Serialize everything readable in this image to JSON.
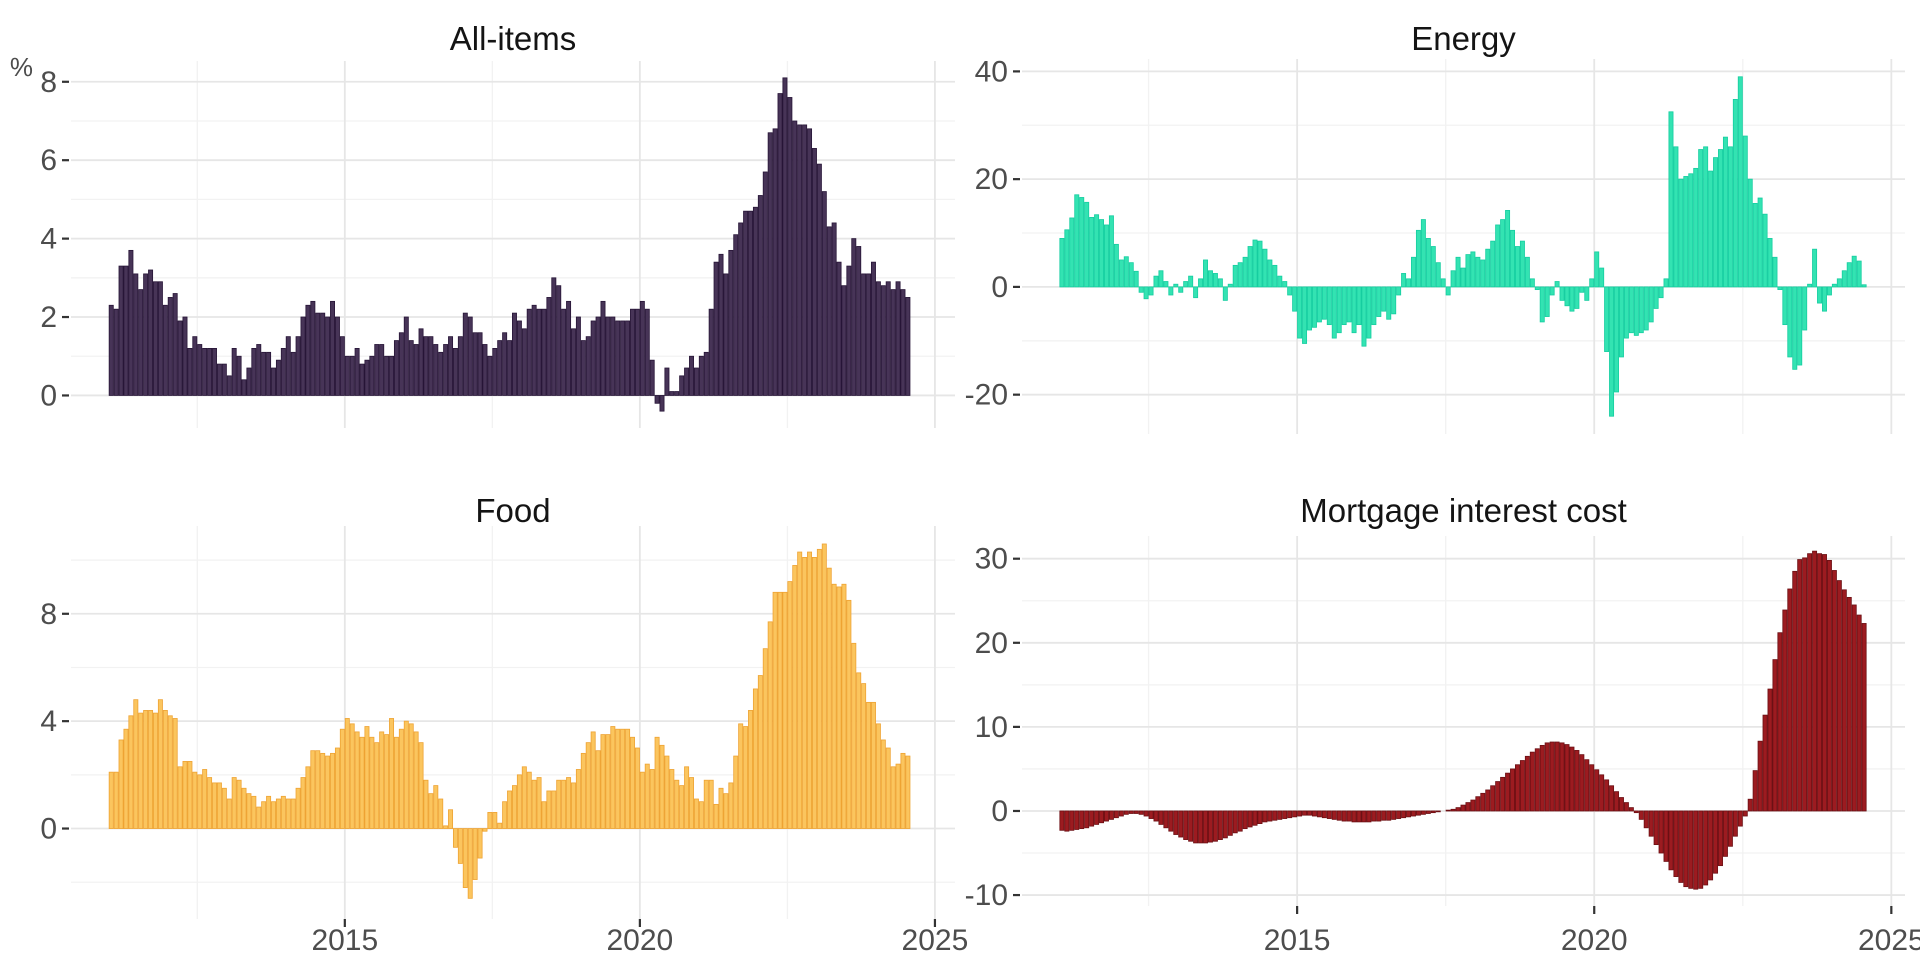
{
  "page": {
    "background": "#FFFFFF"
  },
  "axis_style": {
    "text_color": "#4D4D4D",
    "tick_color": "#333333",
    "grid_major": "#E6E6E6",
    "grid_minor": "#F2F2F2",
    "title_color": "#141414",
    "axis_font_px": 30,
    "title_font_px": 33
  },
  "chart_data": [
    {
      "id": "all-items",
      "type": "bar",
      "title": "All-items",
      "ylabel": "%",
      "fill": "#473457",
      "stroke": "#271537",
      "x_start_year": 2011,
      "frequency": "monthly",
      "xlim": [
        2010.36,
        2025.34
      ],
      "x_breaks": [
        2015,
        2020,
        2025
      ],
      "x_break_labels": [
        "2015",
        "2020",
        "2025"
      ],
      "x_minor_breaks": [
        2012.5,
        2017.5,
        2022.5
      ],
      "show_x_labels": false,
      "ylim": [
        -0.83,
        8.53
      ],
      "y_breaks": [
        0,
        2,
        4,
        6,
        8
      ],
      "y_minor_breaks": [
        1,
        3,
        5,
        7
      ],
      "values": [
        2.3,
        2.2,
        3.3,
        3.3,
        3.7,
        3.1,
        2.7,
        3.1,
        3.2,
        2.9,
        2.9,
        2.3,
        2.5,
        2.6,
        1.9,
        2.0,
        1.2,
        1.5,
        1.3,
        1.2,
        1.2,
        1.2,
        0.8,
        0.8,
        0.5,
        1.2,
        1.0,
        0.4,
        0.7,
        1.2,
        1.3,
        1.1,
        1.1,
        0.7,
        0.9,
        1.2,
        1.5,
        1.1,
        1.5,
        2.0,
        2.3,
        2.4,
        2.1,
        2.1,
        2.0,
        2.4,
        2.0,
        1.5,
        1.0,
        1.0,
        1.2,
        0.8,
        0.9,
        1.0,
        1.3,
        1.3,
        1.0,
        1.0,
        1.4,
        1.6,
        2.0,
        1.4,
        1.3,
        1.7,
        1.5,
        1.5,
        1.3,
        1.1,
        1.3,
        1.5,
        1.2,
        1.5,
        2.1,
        2.0,
        1.6,
        1.6,
        1.3,
        1.0,
        1.2,
        1.4,
        1.6,
        1.4,
        2.1,
        1.9,
        1.7,
        2.2,
        2.3,
        2.2,
        2.2,
        2.5,
        3.0,
        2.8,
        2.2,
        2.4,
        1.7,
        2.0,
        1.4,
        1.5,
        1.9,
        2.0,
        2.4,
        2.0,
        2.0,
        1.9,
        1.9,
        1.9,
        2.2,
        2.2,
        2.4,
        2.2,
        0.9,
        -0.2,
        -0.4,
        0.7,
        0.1,
        0.1,
        0.5,
        0.7,
        1.0,
        0.7,
        1.0,
        1.1,
        2.2,
        3.4,
        3.6,
        3.1,
        3.7,
        4.1,
        4.4,
        4.7,
        4.7,
        4.8,
        5.1,
        5.7,
        6.7,
        6.8,
        7.7,
        8.1,
        7.6,
        7.0,
        6.9,
        6.9,
        6.8,
        6.3,
        5.9,
        5.2,
        4.3,
        4.4,
        3.4,
        2.8,
        3.3,
        4.0,
        3.8,
        3.1,
        3.1,
        3.4,
        2.9,
        2.8,
        2.9,
        2.7,
        2.9,
        2.7,
        2.5
      ]
    },
    {
      "id": "energy",
      "type": "bar",
      "title": "Energy",
      "ylabel": "",
      "fill": "#33E3B2",
      "stroke": "#15CDA0",
      "x_start_year": 2011,
      "frequency": "monthly",
      "xlim": [
        2010.37,
        2025.23
      ],
      "x_breaks": [
        2015,
        2020,
        2025
      ],
      "x_break_labels": [
        "2015",
        "2020",
        "2025"
      ],
      "x_minor_breaks": [
        2012.5,
        2017.5,
        2022.5
      ],
      "show_x_labels": false,
      "ylim": [
        -27.3,
        42.3
      ],
      "y_breaks": [
        -20,
        0,
        20,
        40
      ],
      "y_minor_breaks": [
        -10,
        10,
        30
      ],
      "values": [
        9.0,
        10.6,
        12.8,
        17.1,
        16.6,
        15.7,
        12.9,
        13.4,
        12.5,
        11.5,
        13.2,
        7.9,
        5.0,
        5.6,
        4.5,
        2.9,
        -1.0,
        -2.2,
        -1.5,
        2.0,
        3.0,
        1.0,
        -1.5,
        0.5,
        -1.0,
        1.0,
        2.0,
        -2.0,
        1.5,
        5.0,
        3.0,
        2.5,
        1.5,
        -2.5,
        0.5,
        4.0,
        4.5,
        5.5,
        7.5,
        8.7,
        8.5,
        7.0,
        5.0,
        4.0,
        2.0,
        1.0,
        -1.5,
        -4.5,
        -9.5,
        -10.5,
        -8.0,
        -7.5,
        -6.5,
        -6.0,
        -7.0,
        -9.5,
        -8.5,
        -7.0,
        -6.5,
        -8.5,
        -7.0,
        -11.0,
        -9.5,
        -7.0,
        -5.5,
        -4.5,
        -6.0,
        -5.0,
        -1.5,
        2.5,
        1.5,
        5.5,
        10.5,
        12.5,
        9.0,
        7.5,
        4.5,
        1.5,
        -1.5,
        3.0,
        5.5,
        3.5,
        6.0,
        6.5,
        5.5,
        5.0,
        7.0,
        8.5,
        11.5,
        12.5,
        14.2,
        10.5,
        7.5,
        8.5,
        5.5,
        1.5,
        -0.5,
        -6.5,
        -5.5,
        -1.5,
        1.0,
        -2.5,
        -3.5,
        -4.5,
        -4.0,
        -1.0,
        -2.5,
        1.5,
        6.5,
        3.5,
        -12.0,
        -24.0,
        -19.5,
        -13.0,
        -9.5,
        -8.5,
        -9.0,
        -8.5,
        -8.0,
        -6.5,
        -4.0,
        -2.0,
        1.5,
        32.5,
        26.0,
        20.0,
        20.5,
        21.0,
        22.0,
        25.5,
        26.0,
        21.5,
        24.0,
        25.5,
        27.8,
        26.0,
        34.8,
        39.0,
        28.0,
        20.0,
        15.5,
        16.5,
        13.5,
        9.0,
        5.5,
        -0.5,
        -7.0,
        -13.0,
        -15.3,
        -14.5,
        -8.0,
        0.5,
        7.0,
        -3.0,
        -4.5,
        -1.5,
        0.5,
        1.5,
        3.0,
        4.5,
        5.7,
        4.8,
        0.4
      ]
    },
    {
      "id": "food",
      "type": "bar",
      "title": "Food",
      "ylabel": "",
      "fill": "#FBC55E",
      "stroke": "#EEA333",
      "x_start_year": 2011,
      "frequency": "monthly",
      "xlim": [
        2010.36,
        2025.34
      ],
      "x_breaks": [
        2015,
        2020,
        2025
      ],
      "x_break_labels": [
        "2015",
        "2020",
        "2025"
      ],
      "x_minor_breaks": [
        2012.5,
        2017.5,
        2022.5
      ],
      "show_x_labels": true,
      "ylim": [
        -3.37,
        11.27
      ],
      "y_breaks": [
        0,
        4,
        8
      ],
      "y_minor_breaks": [
        -2,
        2,
        6,
        10
      ],
      "values": [
        2.1,
        2.1,
        3.3,
        3.7,
        4.2,
        4.8,
        4.3,
        4.4,
        4.4,
        4.3,
        4.8,
        4.4,
        4.2,
        4.1,
        2.3,
        2.5,
        2.5,
        2.1,
        2.0,
        2.2,
        1.9,
        1.7,
        1.7,
        1.5,
        1.1,
        1.9,
        1.8,
        1.5,
        1.3,
        1.2,
        0.8,
        1.0,
        1.2,
        1.0,
        1.1,
        1.2,
        1.1,
        1.1,
        1.5,
        1.9,
        2.3,
        2.9,
        2.9,
        2.8,
        2.7,
        2.8,
        3.0,
        3.7,
        4.1,
        3.9,
        3.6,
        3.4,
        3.8,
        3.4,
        3.2,
        3.6,
        3.5,
        4.1,
        3.4,
        3.7,
        4.0,
        3.9,
        3.6,
        3.2,
        1.8,
        1.3,
        1.6,
        1.1,
        0.1,
        0.7,
        -0.7,
        -1.3,
        -2.2,
        -2.6,
        -1.9,
        -1.1,
        -0.1,
        0.6,
        0.6,
        0.2,
        1.0,
        1.4,
        1.6,
        2.0,
        2.3,
        2.1,
        1.8,
        1.9,
        1.0,
        1.4,
        1.4,
        1.8,
        1.8,
        1.9,
        1.7,
        2.2,
        2.8,
        3.2,
        3.6,
        2.9,
        3.5,
        3.5,
        3.8,
        3.7,
        3.7,
        3.7,
        3.4,
        3.0,
        2.1,
        2.4,
        2.2,
        3.4,
        3.1,
        2.7,
        2.2,
        1.8,
        1.6,
        2.3,
        1.9,
        1.1,
        1.0,
        1.8,
        1.8,
        0.9,
        1.5,
        1.3,
        1.7,
        2.7,
        3.9,
        3.8,
        4.4,
        5.2,
        5.7,
        6.7,
        7.7,
        8.8,
        8.8,
        8.8,
        9.2,
        9.8,
        10.3,
        10.1,
        10.3,
        10.1,
        10.4,
        10.6,
        9.7,
        9.1,
        9.0,
        9.1,
        8.5,
        6.9,
        5.8,
        5.4,
        4.7,
        4.7,
        3.9,
        3.3,
        3.0,
        2.3,
        2.4,
        2.8,
        2.7
      ]
    },
    {
      "id": "mortgage",
      "type": "bar",
      "title": "Mortgage interest cost",
      "ylabel": "",
      "fill": "#9C1B20",
      "stroke": "#6B0F13",
      "x_start_year": 2011,
      "frequency": "monthly",
      "xlim": [
        2010.37,
        2025.23
      ],
      "x_breaks": [
        2015,
        2020,
        2025
      ],
      "x_break_labels": [
        "2015",
        "2020",
        "2025"
      ],
      "x_minor_breaks": [
        2012.5,
        2017.5,
        2022.5
      ],
      "show_x_labels": true,
      "ylim": [
        -11.3,
        32.7
      ],
      "y_breaks": [
        -10,
        0,
        10,
        20,
        30
      ],
      "y_minor_breaks": [
        -5,
        5,
        15,
        25
      ],
      "values": [
        -2.3,
        -2.4,
        -2.3,
        -2.2,
        -2.1,
        -2.0,
        -1.8,
        -1.6,
        -1.4,
        -1.2,
        -1.0,
        -0.8,
        -0.6,
        -0.4,
        -0.3,
        -0.3,
        -0.4,
        -0.6,
        -0.9,
        -1.2,
        -1.6,
        -2.0,
        -2.4,
        -2.8,
        -3.1,
        -3.4,
        -3.6,
        -3.8,
        -3.8,
        -3.8,
        -3.7,
        -3.6,
        -3.4,
        -3.2,
        -2.9,
        -2.6,
        -2.4,
        -2.1,
        -1.9,
        -1.7,
        -1.5,
        -1.3,
        -1.2,
        -1.1,
        -1.0,
        -0.9,
        -0.8,
        -0.7,
        -0.6,
        -0.5,
        -0.5,
        -0.6,
        -0.7,
        -0.8,
        -0.9,
        -1.0,
        -1.1,
        -1.2,
        -1.2,
        -1.3,
        -1.3,
        -1.3,
        -1.3,
        -1.2,
        -1.2,
        -1.1,
        -1.1,
        -1.0,
        -0.9,
        -0.8,
        -0.7,
        -0.6,
        -0.5,
        -0.4,
        -0.3,
        -0.2,
        -0.1,
        0.0,
        0.1,
        0.2,
        0.4,
        0.7,
        1.0,
        1.3,
        1.7,
        2.1,
        2.5,
        3.0,
        3.5,
        4.0,
        4.5,
        5.0,
        5.5,
        6.0,
        6.5,
        7.0,
        7.4,
        7.8,
        8.1,
        8.2,
        8.2,
        8.1,
        7.9,
        7.6,
        7.2,
        6.7,
        6.1,
        5.5,
        4.9,
        4.3,
        3.7,
        3.0,
        2.3,
        1.6,
        1.0,
        0.4,
        -0.2,
        -1.0,
        -2.0,
        -3.0,
        -4.0,
        -5.0,
        -6.0,
        -7.0,
        -7.8,
        -8.5,
        -9.0,
        -9.2,
        -9.3,
        -9.2,
        -8.8,
        -8.2,
        -7.4,
        -6.5,
        -5.4,
        -4.2,
        -3.0,
        -1.8,
        -0.6,
        1.4,
        4.8,
        8.3,
        11.4,
        14.5,
        18.0,
        21.2,
        23.9,
        26.4,
        28.5,
        29.9,
        30.1,
        30.6,
        30.9,
        30.6,
        30.5,
        29.8,
        28.6,
        27.4,
        26.3,
        25.4,
        24.5,
        23.3,
        22.3
      ]
    }
  ]
}
